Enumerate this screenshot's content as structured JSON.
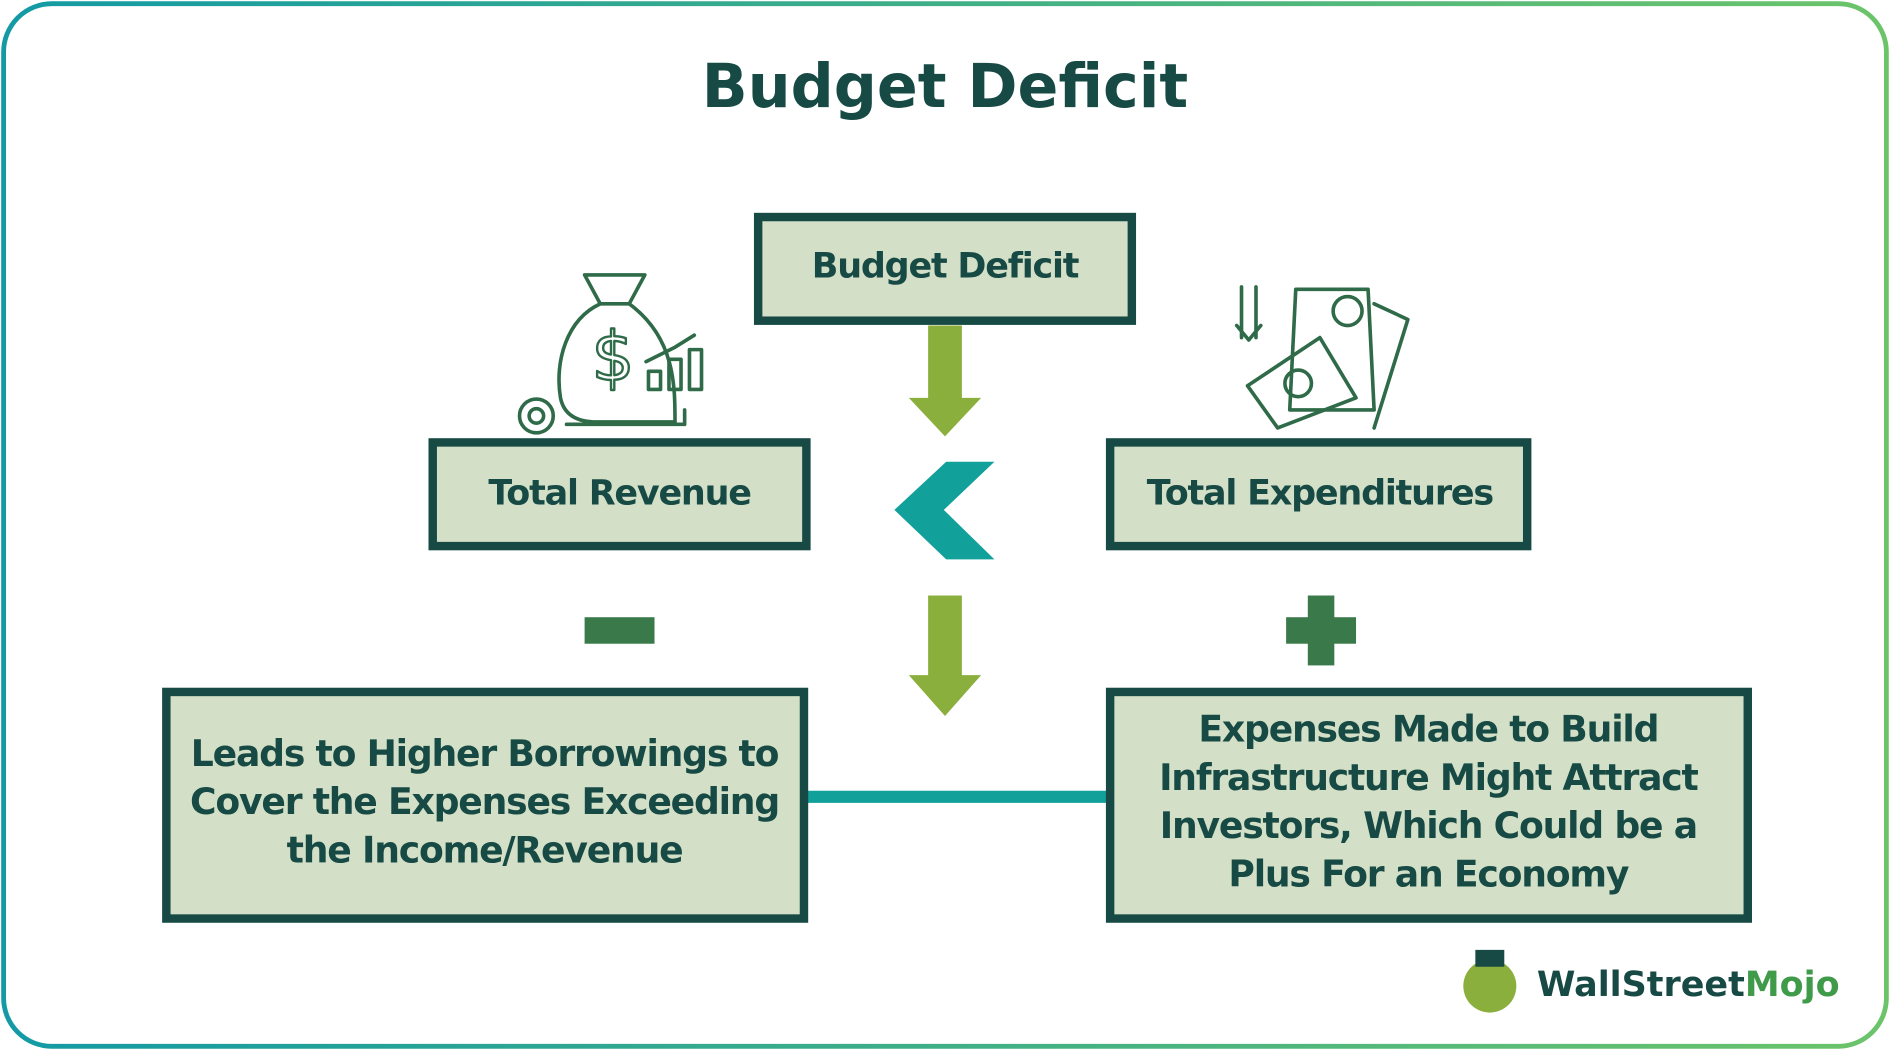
{
  "title": "Budget Deficit",
  "nodes": [
    {
      "label": "Budget Deficit"
    },
    {
      "label": "Total Revenue"
    },
    {
      "label": "Total Expenditures"
    },
    {
      "lines": [
        "Leads to Higher Borrowings to",
        "Cover the Expenses Exceeding",
        "the Income/Revenue"
      ]
    },
    {
      "lines": [
        "Expenses Made to Build",
        "Infrastructure Might Attract",
        "Investors, Which Could be a",
        "Plus For an Economy"
      ]
    }
  ],
  "logo": {
    "part1": "WallStreet",
    "part2": "Mojo"
  }
}
